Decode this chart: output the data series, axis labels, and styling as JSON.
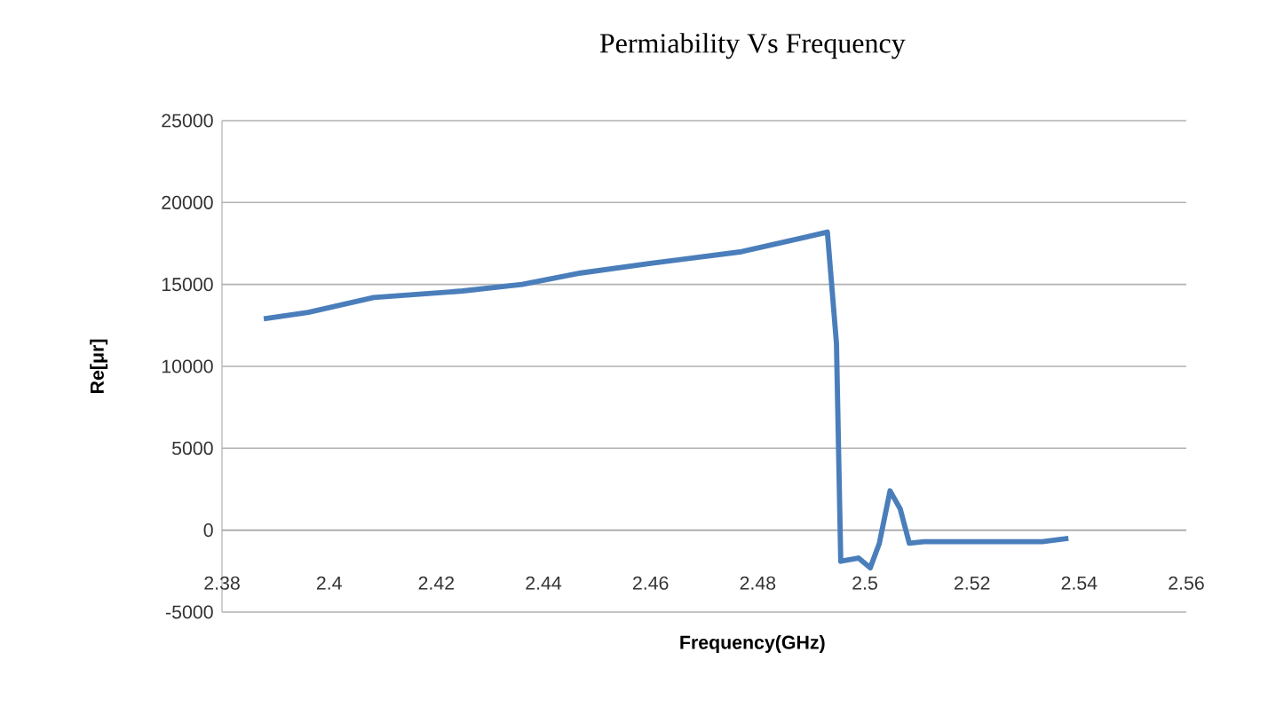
{
  "chart_data": {
    "type": "line",
    "title": "Permiability Vs Frequency",
    "xlabel": "Frequency(GHz)",
    "ylabel": "Re[μr]",
    "x": [
      2.3878,
      2.3961,
      2.4083,
      2.4249,
      2.436,
      2.447,
      2.4603,
      2.477,
      2.4891,
      2.493,
      2.4947,
      2.4955,
      2.4988,
      2.501,
      2.5027,
      2.5047,
      2.5066,
      2.5083,
      2.511,
      2.5232,
      2.5331,
      2.538
    ],
    "series": [
      {
        "color": "#4a7ebb",
        "values": [
          12900,
          13300,
          14200,
          14600,
          15000,
          15700,
          16300,
          17000,
          17900,
          18200,
          11400,
          -1900,
          -1700,
          -2300,
          -800,
          2400,
          1300,
          -800,
          -700,
          -700,
          -700,
          -500
        ]
      }
    ],
    "xlim": [
      2.38,
      2.56
    ],
    "ylim": [
      -5000,
      25000
    ],
    "xticks": [
      2.38,
      2.4,
      2.42,
      2.44,
      2.46,
      2.48,
      2.5,
      2.52,
      2.54,
      2.56
    ],
    "yticks": [
      -5000,
      0,
      5000,
      10000,
      15000,
      20000,
      25000
    ],
    "grid": "y"
  }
}
